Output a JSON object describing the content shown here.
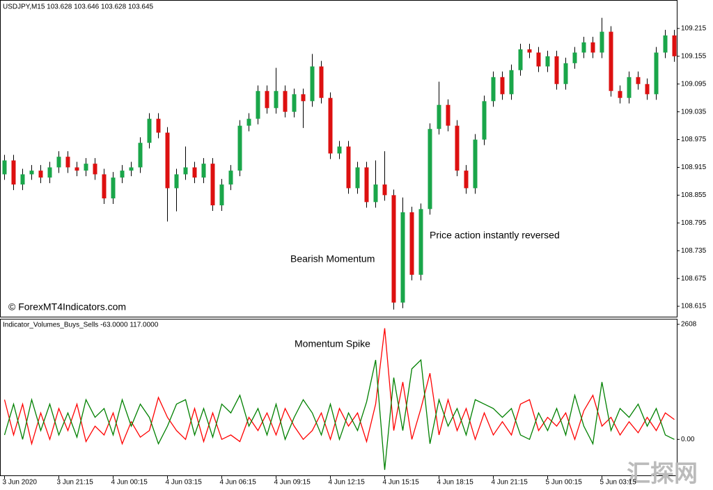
{
  "chart_data": [
    {
      "type": "candlestick",
      "title": "USDJPY,M15  103.628 103.646 103.628 103.645",
      "annotations": [
        "Bearish Momentum",
        "Price action instantly reversed"
      ],
      "watermark_left": "© ForexMT4Indicators.com",
      "bull_color": "#1aa64a",
      "bear_color": "#dd1010",
      "wick_color": "#000000",
      "open": [
        108.9,
        108.93,
        108.878,
        108.9,
        108.908,
        108.893,
        108.915,
        108.938,
        108.915,
        108.908,
        108.923,
        108.9,
        108.848,
        108.893,
        108.908,
        108.915,
        108.968,
        109.02,
        108.99,
        108.87,
        108.9,
        108.915,
        108.893,
        108.923,
        108.833,
        108.878,
        108.908,
        109.005,
        109.02,
        109.08,
        109.043,
        109.08,
        109.035,
        109.073,
        109.058,
        109.133,
        109.065,
        108.945,
        108.96,
        108.87,
        108.915,
        108.84,
        108.878,
        108.855,
        108.623,
        108.818,
        108.683,
        108.825,
        108.998,
        109.05,
        109.005,
        108.908,
        108.87,
        108.975,
        109.058,
        109.11,
        109.073,
        109.125,
        109.17,
        109.163,
        109.133,
        109.155,
        109.095,
        109.14,
        109.163,
        109.185,
        109.163,
        109.208,
        109.08,
        109.065,
        109.11,
        109.095,
        109.073,
        109.163,
        109.2
      ],
      "high": [
        108.942,
        108.942,
        108.912,
        108.92,
        108.92,
        108.927,
        108.95,
        108.95,
        108.927,
        108.935,
        108.935,
        108.912,
        108.905,
        108.92,
        108.927,
        108.98,
        109.032,
        109.032,
        109.002,
        108.912,
        108.96,
        108.927,
        108.935,
        108.935,
        108.89,
        108.92,
        109.017,
        109.032,
        109.092,
        109.092,
        109.13,
        109.092,
        109.085,
        109.085,
        109.16,
        109.145,
        109.077,
        108.972,
        108.972,
        108.927,
        108.927,
        108.93,
        108.95,
        108.867,
        108.85,
        108.83,
        108.837,
        109.01,
        109.1,
        109.062,
        109.017,
        108.92,
        108.987,
        109.07,
        109.122,
        109.122,
        109.137,
        109.182,
        109.182,
        109.175,
        109.167,
        109.167,
        109.152,
        109.175,
        109.197,
        109.197,
        109.238,
        109.22,
        109.092,
        109.122,
        109.122,
        109.107,
        109.175,
        109.212,
        109.212
      ],
      "low": [
        108.888,
        108.866,
        108.866,
        108.888,
        108.881,
        108.881,
        108.903,
        108.903,
        108.896,
        108.896,
        108.888,
        108.836,
        108.836,
        108.881,
        108.896,
        108.903,
        108.956,
        108.978,
        108.798,
        108.82,
        108.888,
        108.881,
        108.881,
        108.821,
        108.821,
        108.866,
        108.896,
        108.993,
        109.008,
        109.031,
        109.031,
        109.023,
        109.023,
        109.0,
        109.046,
        109.053,
        108.933,
        108.933,
        108.858,
        108.858,
        108.828,
        108.828,
        108.843,
        108.608,
        108.611,
        108.671,
        108.671,
        108.813,
        108.986,
        108.993,
        108.896,
        108.858,
        108.858,
        108.963,
        109.046,
        109.061,
        109.061,
        109.113,
        109.151,
        109.121,
        109.121,
        109.083,
        109.083,
        109.128,
        109.151,
        109.151,
        109.151,
        109.068,
        109.053,
        109.053,
        109.083,
        109.061,
        109.061,
        109.151,
        109.143
      ],
      "close": [
        108.93,
        108.878,
        108.9,
        108.908,
        108.893,
        108.915,
        108.938,
        108.915,
        108.908,
        108.923,
        108.9,
        108.848,
        108.893,
        108.908,
        108.915,
        108.968,
        109.02,
        108.99,
        108.87,
        108.9,
        108.915,
        108.893,
        108.923,
        108.833,
        108.878,
        108.908,
        109.005,
        109.02,
        109.08,
        109.043,
        109.08,
        109.035,
        109.073,
        109.058,
        109.133,
        109.065,
        108.945,
        108.96,
        108.87,
        108.915,
        108.84,
        108.878,
        108.855,
        108.623,
        108.818,
        108.683,
        108.825,
        108.998,
        109.05,
        109.005,
        108.908,
        108.87,
        108.975,
        109.058,
        109.11,
        109.073,
        109.125,
        109.17,
        109.163,
        109.133,
        109.155,
        109.095,
        109.14,
        109.163,
        109.185,
        109.163,
        109.208,
        109.08,
        109.065,
        109.11,
        109.095,
        109.073,
        109.163,
        109.2,
        109.155
      ],
      "ylim": [
        108.5925,
        109.275
      ],
      "yticks": [
        109.215,
        109.155,
        109.095,
        109.035,
        108.975,
        108.915,
        108.855,
        108.795,
        108.735,
        108.675,
        108.615
      ]
    },
    {
      "type": "line",
      "title": "Indicator_Volumes_Buys_Sells -63.0000 117.0000",
      "annotations": [
        "Momentum Spike"
      ],
      "watermark": "汇探网",
      "categories": [
        "3 Jun 2020",
        null,
        null,
        null,
        null,
        null,
        "3 Jun 21:15",
        null,
        null,
        null,
        null,
        null,
        "4 Jun 00:15",
        null,
        null,
        null,
        null,
        null,
        "4 Jun 03:15",
        null,
        null,
        null,
        null,
        null,
        "4 Jun 06:15",
        null,
        null,
        null,
        null,
        null,
        "4 Jun 09:15",
        null,
        null,
        null,
        null,
        null,
        "4 Jun 12:15",
        null,
        null,
        null,
        null,
        null,
        "4 Jun 15:15",
        null,
        null,
        null,
        null,
        null,
        "4 Jun 18:15",
        null,
        null,
        null,
        null,
        null,
        "4 Jun 21:15",
        null,
        null,
        null,
        null,
        null,
        "5 Jun 00:15",
        null,
        null,
        null,
        null,
        null,
        "5 Jun 03:15",
        null,
        null,
        null,
        null,
        null,
        null,
        null,
        null
      ],
      "series": [
        {
          "color": "#ff0000",
          "values": [
            900,
            100,
            800,
            -100,
            600,
            0,
            700,
            200,
            800,
            -50,
            300,
            100,
            600,
            -100,
            400,
            50,
            200,
            950,
            500,
            200,
            0,
            700,
            -50,
            600,
            0,
            100,
            -50,
            500,
            200,
            600,
            100,
            700,
            300,
            0,
            200,
            600,
            0,
            700,
            300,
            600,
            -50,
            800,
            2520,
            200,
            1300,
            0,
            700,
            1500,
            100,
            900,
            200,
            700,
            0,
            600,
            100,
            400,
            100,
            800,
            900,
            200,
            500,
            300,
            600,
            0,
            650,
            1000,
            300,
            500,
            100,
            400,
            150,
            500,
            200,
            600,
            450
          ]
        },
        {
          "color": "#008000",
          "values": [
            100,
            800,
            0,
            900,
            200,
            800,
            100,
            600,
            50,
            900,
            500,
            700,
            100,
            900,
            300,
            800,
            500,
            -100,
            300,
            800,
            900,
            100,
            700,
            50,
            800,
            600,
            1000,
            300,
            700,
            100,
            800,
            0,
            500,
            900,
            600,
            100,
            800,
            0,
            600,
            200,
            850,
            1800,
            -690,
            1400,
            200,
            1600,
            1800,
            -100,
            900,
            300,
            700,
            100,
            900,
            800,
            700,
            500,
            700,
            100,
            0,
            600,
            200,
            700,
            100,
            1000,
            300,
            -100,
            1300,
            200,
            700,
            500,
            800,
            300,
            700,
            100,
            0
          ]
        }
      ],
      "ylim": [
        -816,
        2718
      ],
      "yticks": [
        2608,
        {
          "value": 0,
          "label": "0.00"
        }
      ]
    }
  ]
}
